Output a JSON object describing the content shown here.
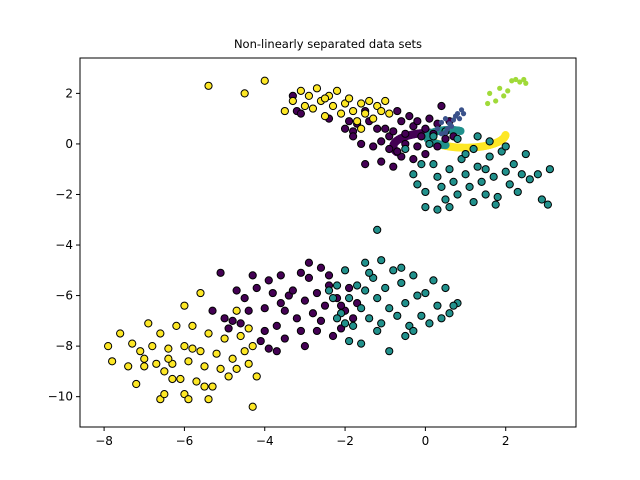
{
  "chart_data": {
    "type": "scatter",
    "title": "Non-linearly separated data sets",
    "xlabel": "",
    "ylabel": "",
    "xlim": [
      -8.6,
      3.75
    ],
    "ylim": [
      -11.2,
      3.4
    ],
    "x_ticks": [
      -8,
      -6,
      -4,
      -2,
      0,
      2
    ],
    "y_ticks": [
      2,
      0,
      -2,
      -4,
      -6,
      -8,
      -10
    ],
    "x_tick_labels": [
      "−8",
      "−6",
      "−4",
      "−2",
      "0",
      "2"
    ],
    "y_tick_labels": [
      "2",
      "0",
      "−2",
      "−4",
      "−6",
      "−8",
      "−10"
    ],
    "grid": false,
    "legend": "none",
    "colors": {
      "purple": "#440154",
      "teal": "#21918c",
      "yellow": "#fde725",
      "blue": "#3b528b",
      "lime": "#a0da39",
      "edge": "#000000"
    },
    "series": [
      {
        "color": "#440154",
        "marker": "circle",
        "edge": true,
        "points": [
          [
            -3.3,
            1.9
          ],
          [
            -3.2,
            1.3
          ],
          [
            -3.1,
            1.2
          ],
          [
            -2.4,
            1.0
          ],
          [
            -1.8,
            0.5
          ],
          [
            -1.7,
            0.8
          ],
          [
            -1.5,
            1.3
          ],
          [
            -1.4,
            0.9
          ],
          [
            -1.2,
            0.6
          ],
          [
            -1.1,
            0.1
          ],
          [
            -1.0,
            0.6
          ],
          [
            -0.9,
            0.3
          ],
          [
            -0.8,
            0.5
          ],
          [
            -0.7,
            1.3
          ],
          [
            -0.6,
            0.9
          ],
          [
            -0.5,
            0.4
          ],
          [
            -0.4,
            1.1
          ],
          [
            -0.3,
            0.7
          ],
          [
            -0.2,
            0.9
          ],
          [
            -0.1,
            0.3
          ],
          [
            0.0,
            0.6
          ],
          [
            0.1,
            1.0
          ],
          [
            0.2,
            0.4
          ],
          [
            0.3,
            0.8
          ],
          [
            0.4,
            1.5
          ],
          [
            0.5,
            0.2
          ],
          [
            0.6,
            0.9
          ],
          [
            0.7,
            0.3
          ],
          [
            -1.3,
            -0.1
          ],
          [
            -0.9,
            -0.2
          ],
          [
            -0.6,
            -0.5
          ],
          [
            -1.5,
            -0.8
          ],
          [
            -1.1,
            -0.7
          ],
          [
            -0.3,
            -0.6
          ],
          [
            0.0,
            -0.4
          ],
          [
            -1.8,
            0.3
          ],
          [
            -1.9,
            0.9
          ],
          [
            -2.0,
            0.6
          ],
          [
            -0.8,
            -0.9
          ],
          [
            -0.5,
            0.0
          ],
          [
            0.3,
            -0.1
          ],
          [
            -1.6,
            0.0
          ],
          [
            -0.2,
            -0.1
          ],
          [
            -0.7,
            -0.3
          ],
          [
            -4.5,
            -6.1
          ],
          [
            -4.6,
            -7.1
          ],
          [
            -4.4,
            -6.6
          ],
          [
            -4.2,
            -5.7
          ],
          [
            -4.0,
            -6.5
          ],
          [
            -4.1,
            -7.8
          ],
          [
            -3.9,
            -8.1
          ],
          [
            -3.8,
            -5.9
          ],
          [
            -3.7,
            -7.2
          ],
          [
            -3.6,
            -6.3
          ],
          [
            -3.5,
            -7.7
          ],
          [
            -3.4,
            -6.0
          ],
          [
            -3.3,
            -5.8
          ],
          [
            -3.2,
            -6.9
          ],
          [
            -3.1,
            -7.4
          ],
          [
            -3.0,
            -6.2
          ],
          [
            -2.9,
            -5.3
          ],
          [
            -2.8,
            -6.7
          ],
          [
            -2.7,
            -5.9
          ],
          [
            -2.6,
            -7.0
          ],
          [
            -2.5,
            -6.4
          ],
          [
            -2.4,
            -5.6
          ],
          [
            -2.3,
            -7.6
          ],
          [
            -2.2,
            -6.1
          ],
          [
            -2.1,
            -7.3
          ],
          [
            -2.0,
            -6.6
          ],
          [
            -1.9,
            -5.7
          ],
          [
            -1.8,
            -6.9
          ],
          [
            -1.7,
            -6.3
          ],
          [
            -3.0,
            -8.0
          ],
          [
            -3.5,
            -6.6
          ],
          [
            -3.9,
            -5.4
          ],
          [
            -4.8,
            -7.0
          ],
          [
            -4.9,
            -7.3
          ],
          [
            -5.0,
            -6.9
          ],
          [
            -5.3,
            -6.6
          ],
          [
            -4.3,
            -5.2
          ],
          [
            -3.6,
            -5.2
          ],
          [
            -2.9,
            -4.7
          ],
          [
            -2.6,
            -4.9
          ],
          [
            -2.4,
            -5.2
          ],
          [
            -3.1,
            -5.1
          ],
          [
            -3.7,
            -8.2
          ],
          [
            -2.7,
            -7.4
          ],
          [
            -2.1,
            -6.4
          ],
          [
            -4.7,
            -5.8
          ],
          [
            -5.1,
            -5.1
          ],
          [
            -4.0,
            -7.4
          ]
        ]
      },
      {
        "color": "#21918c",
        "marker": "circle",
        "edge": true,
        "points": [
          [
            0.1,
            0.0
          ],
          [
            0.2,
            -0.8
          ],
          [
            0.3,
            -1.3
          ],
          [
            0.4,
            -1.7
          ],
          [
            0.5,
            -2.2
          ],
          [
            0.6,
            -1.0
          ],
          [
            0.7,
            -1.5
          ],
          [
            0.8,
            -2.0
          ],
          [
            0.9,
            -0.6
          ],
          [
            1.0,
            -1.2
          ],
          [
            1.1,
            -1.7
          ],
          [
            1.2,
            -2.3
          ],
          [
            1.3,
            -0.9
          ],
          [
            1.4,
            -1.5
          ],
          [
            1.5,
            -1.0
          ],
          [
            1.6,
            -0.5
          ],
          [
            1.7,
            -1.3
          ],
          [
            1.8,
            -2.1
          ],
          [
            1.9,
            -0.3
          ],
          [
            2.0,
            -1.1
          ],
          [
            2.1,
            -1.6
          ],
          [
            2.2,
            -0.8
          ],
          [
            2.3,
            -1.9
          ],
          [
            2.4,
            -1.2
          ],
          [
            2.5,
            -0.4
          ],
          [
            2.6,
            -1.4
          ],
          [
            2.8,
            -1.2
          ],
          [
            2.9,
            -2.2
          ],
          [
            3.1,
            -1.0
          ],
          [
            3.05,
            -2.4
          ],
          [
            -0.3,
            -1.2
          ],
          [
            -0.2,
            -1.6
          ],
          [
            -0.1,
            -0.8
          ],
          [
            0.0,
            -1.9
          ],
          [
            0.0,
            -2.5
          ],
          [
            0.3,
            -2.6
          ],
          [
            0.6,
            -2.5
          ],
          [
            1.0,
            -0.4
          ],
          [
            1.3,
            0.3
          ],
          [
            1.6,
            0.1
          ],
          [
            2.0,
            -0.1
          ],
          [
            -0.5,
            -0.2
          ],
          [
            0.2,
            0.3
          ],
          [
            0.5,
            0.5
          ],
          [
            0.8,
            0.2
          ],
          [
            1.2,
            -0.2
          ],
          [
            1.5,
            -2.0
          ],
          [
            1.75,
            -2.4
          ],
          [
            -2.3,
            -6.1
          ],
          [
            -2.2,
            -5.6
          ],
          [
            -2.1,
            -6.7
          ],
          [
            -2.0,
            -5.0
          ],
          [
            -1.9,
            -6.1
          ],
          [
            -1.8,
            -7.2
          ],
          [
            -1.7,
            -5.6
          ],
          [
            -1.6,
            -6.5
          ],
          [
            -1.5,
            -4.7
          ],
          [
            -1.4,
            -6.9
          ],
          [
            -1.3,
            -5.3
          ],
          [
            -1.2,
            -6.1
          ],
          [
            -1.1,
            -7.1
          ],
          [
            -1.0,
            -5.7
          ],
          [
            -0.9,
            -6.5
          ],
          [
            -0.8,
            -5.0
          ],
          [
            -0.7,
            -6.8
          ],
          [
            -0.6,
            -5.5
          ],
          [
            -0.5,
            -6.3
          ],
          [
            -0.4,
            -7.2
          ],
          [
            -0.3,
            -5.2
          ],
          [
            -0.2,
            -6.0
          ],
          [
            -0.1,
            -6.8
          ],
          [
            0.0,
            -5.9
          ],
          [
            0.1,
            -7.1
          ],
          [
            0.2,
            -5.4
          ],
          [
            0.3,
            -6.4
          ],
          [
            0.4,
            -6.9
          ],
          [
            0.5,
            -5.7
          ],
          [
            0.6,
            -6.7
          ],
          [
            0.8,
            -6.3
          ],
          [
            -1.2,
            -3.4
          ],
          [
            -1.5,
            -5.8
          ],
          [
            -1.6,
            -7.9
          ],
          [
            -2.0,
            -7.1
          ],
          [
            -1.9,
            -7.8
          ],
          [
            -1.2,
            -7.4
          ],
          [
            -0.5,
            -7.6
          ],
          [
            -0.9,
            -8.2
          ],
          [
            -2.2,
            -6.9
          ],
          [
            -2.4,
            -5.8
          ],
          [
            -1.1,
            -4.6
          ],
          [
            -0.6,
            -4.9
          ],
          [
            -1.4,
            -5.1
          ],
          [
            -0.3,
            -7.4
          ],
          [
            0.7,
            -6.4
          ]
        ]
      },
      {
        "color": "#fde725",
        "marker": "circle",
        "edge": true,
        "points": [
          [
            -5.4,
            2.3
          ],
          [
            -4.5,
            2.0
          ],
          [
            -4.0,
            2.5
          ],
          [
            -3.5,
            1.3
          ],
          [
            -3.3,
            1.7
          ],
          [
            -3.1,
            2.1
          ],
          [
            -2.9,
            1.9
          ],
          [
            -2.8,
            1.4
          ],
          [
            -2.7,
            2.2
          ],
          [
            -2.6,
            1.7
          ],
          [
            -2.5,
            1.1
          ],
          [
            -2.4,
            1.9
          ],
          [
            -2.3,
            1.5
          ],
          [
            -2.2,
            2.1
          ],
          [
            -2.1,
            1.2
          ],
          [
            -2.0,
            1.6
          ],
          [
            -1.9,
            1.8
          ],
          [
            -1.8,
            1.3
          ],
          [
            -1.7,
            0.9
          ],
          [
            -1.6,
            1.6
          ],
          [
            -1.5,
            1.2
          ],
          [
            -1.4,
            1.7
          ],
          [
            -1.3,
            1.0
          ],
          [
            -1.2,
            1.5
          ],
          [
            -1.1,
            1.3
          ],
          [
            -1.0,
            1.7
          ],
          [
            -0.9,
            1.2
          ],
          [
            -1.6,
            0.6
          ],
          [
            -3.0,
            1.5
          ],
          [
            -2.5,
            1.8
          ],
          [
            -7.9,
            -8.0
          ],
          [
            -7.8,
            -8.6
          ],
          [
            -7.6,
            -7.5
          ],
          [
            -7.4,
            -8.8
          ],
          [
            -7.3,
            -7.9
          ],
          [
            -7.2,
            -9.5
          ],
          [
            -7.1,
            -8.2
          ],
          [
            -7.0,
            -8.5
          ],
          [
            -6.9,
            -7.1
          ],
          [
            -6.8,
            -8.0
          ],
          [
            -6.7,
            -8.7
          ],
          [
            -6.6,
            -7.5
          ],
          [
            -6.5,
            -9.0
          ],
          [
            -6.4,
            -8.1
          ],
          [
            -6.3,
            -8.7
          ],
          [
            -6.2,
            -7.2
          ],
          [
            -6.1,
            -9.3
          ],
          [
            -6.0,
            -8.0
          ],
          [
            -5.9,
            -8.6
          ],
          [
            -5.8,
            -7.2
          ],
          [
            -5.7,
            -9.4
          ],
          [
            -5.6,
            -8.2
          ],
          [
            -5.5,
            -8.8
          ],
          [
            -5.4,
            -7.5
          ],
          [
            -5.3,
            -9.6
          ],
          [
            -5.2,
            -8.3
          ],
          [
            -5.1,
            -8.9
          ],
          [
            -5.0,
            -7.7
          ],
          [
            -4.9,
            -9.2
          ],
          [
            -4.8,
            -8.5
          ],
          [
            -4.7,
            -8.9
          ],
          [
            -4.6,
            -7.6
          ],
          [
            -4.5,
            -8.2
          ],
          [
            -4.4,
            -8.7
          ],
          [
            -4.3,
            -8.0
          ],
          [
            -4.2,
            -9.2
          ],
          [
            -6.0,
            -6.4
          ],
          [
            -5.6,
            -5.9
          ],
          [
            -4.7,
            -6.6
          ],
          [
            -4.4,
            -7.3
          ],
          [
            -6.6,
            -10.1
          ],
          [
            -6.5,
            -9.9
          ],
          [
            -6.0,
            -9.9
          ],
          [
            -5.9,
            -10.1
          ],
          [
            -5.4,
            -10.1
          ],
          [
            -5.5,
            -9.6
          ],
          [
            -6.3,
            -9.3
          ],
          [
            -4.3,
            -10.4
          ],
          [
            -7.0,
            -8.8
          ],
          [
            -6.4,
            -8.5
          ],
          [
            -5.8,
            -8.1
          ]
        ]
      },
      {
        "color": "#3b528b",
        "marker": "circle",
        "edge": false,
        "points": [
          [
            0.3,
            0.6
          ],
          [
            0.4,
            0.85
          ],
          [
            0.5,
            1.0
          ],
          [
            0.55,
            0.6
          ],
          [
            0.6,
            0.8
          ],
          [
            0.7,
            0.95
          ],
          [
            0.75,
            1.1
          ],
          [
            0.8,
            1.2
          ],
          [
            0.85,
            1.0
          ],
          [
            0.9,
            1.35
          ],
          [
            0.95,
            1.2
          ],
          [
            0.5,
            0.45
          ],
          [
            0.65,
            0.7
          ],
          [
            0.4,
            0.4
          ]
        ]
      },
      {
        "color": "#a0da39",
        "marker": "circle",
        "edge": false,
        "points": [
          [
            1.55,
            1.6
          ],
          [
            1.6,
            2.0
          ],
          [
            1.75,
            1.7
          ],
          [
            1.85,
            2.2
          ],
          [
            1.95,
            1.9
          ],
          [
            2.05,
            2.1
          ],
          [
            2.15,
            2.5
          ],
          [
            2.25,
            2.55
          ],
          [
            2.35,
            2.45
          ],
          [
            2.45,
            2.55
          ],
          [
            2.5,
            2.4
          ]
        ]
      }
    ],
    "arcs": [
      {
        "color": "#440154",
        "center": [
          0.2,
          -0.1
        ],
        "radius": 1.0,
        "from_deg": 95,
        "to_deg": 205,
        "note": "dense purple half-ring"
      },
      {
        "color": "#fde725",
        "center": [
          1.0,
          0.4
        ],
        "radius": 1.0,
        "from_deg": 200,
        "to_deg": 355,
        "note": "dense yellow half-ring"
      },
      {
        "color": "#21918c",
        "center": [
          0.6,
          0.25
        ],
        "radius": 0.55,
        "from_deg": 60,
        "to_deg": 260,
        "note": "dense teal small ring"
      }
    ]
  }
}
